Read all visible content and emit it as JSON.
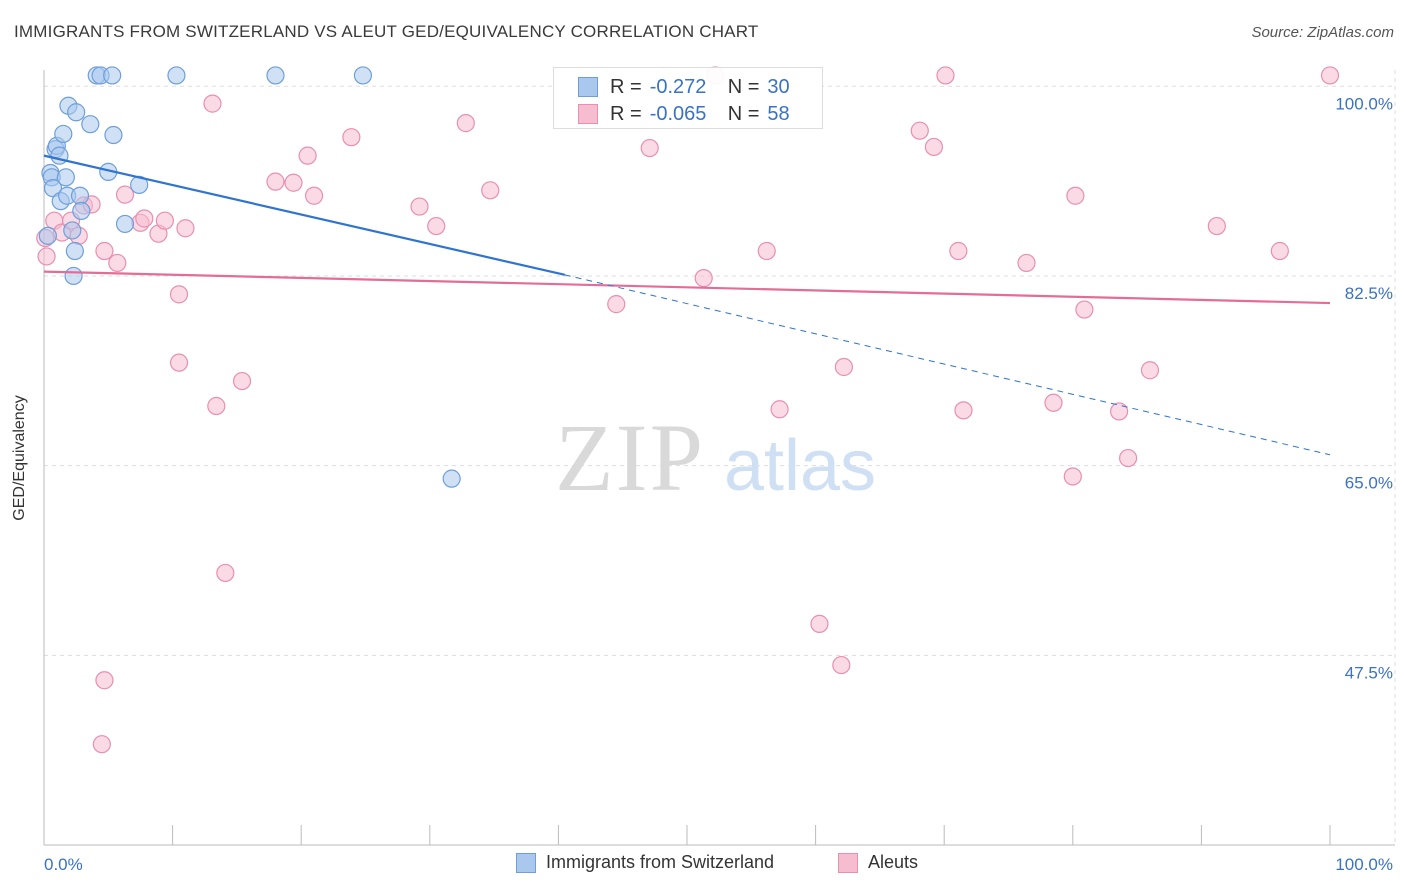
{
  "title": "IMMIGRANTS FROM SWITZERLAND VS ALEUT GED/EQUIVALENCY CORRELATION CHART",
  "source": "Source: ZipAtlas.com",
  "watermark": {
    "zip": "ZIP",
    "atlas": "atlas"
  },
  "colors": {
    "blue_fill": "#aac8ee",
    "blue_stroke": "#6e9fd9",
    "blue_line": "#2f74d0",
    "pink_fill": "#f6bcd0",
    "pink_stroke": "#e98fb0",
    "pink_line": "#e46c96",
    "axis_text": "#3a72c4",
    "grid": "#dddddd"
  },
  "legend": {
    "rows": [
      {
        "r_label": "R =",
        "r_value": "-0.272",
        "n_label": "N =",
        "n_value": "30"
      },
      {
        "r_label": "R =",
        "r_value": "-0.065",
        "n_label": "N =",
        "n_value": "58"
      }
    ]
  },
  "bottom_legend": [
    "Immigrants from Switzerland",
    "Aleuts"
  ],
  "chart_data": {
    "type": "scatter",
    "title": "IMMIGRANTS FROM SWITZERLAND VS ALEUT GED/EQUIVALENCY CORRELATION CHART",
    "xlabel": "",
    "ylabel": "GED/Equivalency",
    "xlim": [
      0,
      100
    ],
    "ylim": [
      30,
      101.5
    ],
    "x_tick_labels": [
      "0.0%",
      "100.0%"
    ],
    "y_ticks": [
      47.5,
      65.0,
      82.5,
      100.0
    ],
    "y_tick_labels": [
      "47.5%",
      "65.0%",
      "82.5%",
      "100.0%"
    ],
    "grid": true,
    "legend_position": "top-center",
    "series": [
      {
        "name": "Immigrants from Switzerland",
        "color": "#aac8ee",
        "r": -0.272,
        "n": 30,
        "trend": {
          "x0": 0,
          "y0": 93.6,
          "x1": 40.5,
          "y1": 82.6,
          "dashed_to_x": 100,
          "dashed_to_y": 66.0
        },
        "points": [
          [
            0.3,
            86.2
          ],
          [
            0.5,
            92.0
          ],
          [
            0.6,
            91.6
          ],
          [
            0.7,
            90.6
          ],
          [
            0.9,
            94.2
          ],
          [
            1.0,
            94.5
          ],
          [
            1.2,
            93.6
          ],
          [
            1.3,
            89.4
          ],
          [
            1.5,
            95.6
          ],
          [
            1.7,
            91.6
          ],
          [
            1.8,
            89.9
          ],
          [
            1.9,
            98.2
          ],
          [
            2.2,
            86.7
          ],
          [
            2.3,
            82.5
          ],
          [
            2.4,
            84.8
          ],
          [
            2.5,
            97.6
          ],
          [
            2.8,
            89.9
          ],
          [
            2.9,
            88.5
          ],
          [
            3.6,
            96.5
          ],
          [
            4.1,
            101.0
          ],
          [
            4.4,
            101.0
          ],
          [
            5.0,
            92.1
          ],
          [
            5.3,
            101.0
          ],
          [
            5.4,
            95.5
          ],
          [
            6.3,
            87.3
          ],
          [
            7.4,
            90.9
          ],
          [
            10.3,
            101.0
          ],
          [
            18.0,
            101.0
          ],
          [
            24.8,
            101.0
          ],
          [
            31.7,
            63.8
          ]
        ]
      },
      {
        "name": "Aleuts",
        "color": "#f6bcd0",
        "r": -0.065,
        "n": 58,
        "trend": {
          "x0": 0,
          "y0": 82.9,
          "x1": 100,
          "y1": 80.0
        },
        "points": [
          [
            0.2,
            84.3
          ],
          [
            0.8,
            87.6
          ],
          [
            1.4,
            86.5
          ],
          [
            2.1,
            87.6
          ],
          [
            2.7,
            86.2
          ],
          [
            3.1,
            89.0
          ],
          [
            3.7,
            89.1
          ],
          [
            4.7,
            84.8
          ],
          [
            5.7,
            83.7
          ],
          [
            6.3,
            90.0
          ],
          [
            7.5,
            87.4
          ],
          [
            7.8,
            87.8
          ],
          [
            8.9,
            86.4
          ],
          [
            9.4,
            87.6
          ],
          [
            10.5,
            80.8
          ],
          [
            10.5,
            74.5
          ],
          [
            11.0,
            86.9
          ],
          [
            13.1,
            98.4
          ],
          [
            13.4,
            70.5
          ],
          [
            14.1,
            55.1
          ],
          [
            15.4,
            72.8
          ],
          [
            18.0,
            91.2
          ],
          [
            19.4,
            91.1
          ],
          [
            20.5,
            93.6
          ],
          [
            21.0,
            89.9
          ],
          [
            23.9,
            95.3
          ],
          [
            29.2,
            88.9
          ],
          [
            30.5,
            87.1
          ],
          [
            32.8,
            96.6
          ],
          [
            34.7,
            90.4
          ],
          [
            44.5,
            79.9
          ],
          [
            47.1,
            94.3
          ],
          [
            51.3,
            82.3
          ],
          [
            52.2,
            101.0
          ],
          [
            56.2,
            84.8
          ],
          [
            57.2,
            70.2
          ],
          [
            60.3,
            50.4
          ],
          [
            62.0,
            46.6
          ],
          [
            62.2,
            74.1
          ],
          [
            68.1,
            95.9
          ],
          [
            69.2,
            94.4
          ],
          [
            70.1,
            101.0
          ],
          [
            71.1,
            84.8
          ],
          [
            71.5,
            70.1
          ],
          [
            76.4,
            83.7
          ],
          [
            78.5,
            70.8
          ],
          [
            80.0,
            64.0
          ],
          [
            80.2,
            89.9
          ],
          [
            80.9,
            79.4
          ],
          [
            83.6,
            70.0
          ],
          [
            84.3,
            65.7
          ],
          [
            86.0,
            73.8
          ],
          [
            91.2,
            87.1
          ],
          [
            96.1,
            84.8
          ],
          [
            100.0,
            101.0
          ],
          [
            4.7,
            45.2
          ],
          [
            4.5,
            39.3
          ],
          [
            0.1,
            86.0
          ]
        ]
      }
    ]
  }
}
